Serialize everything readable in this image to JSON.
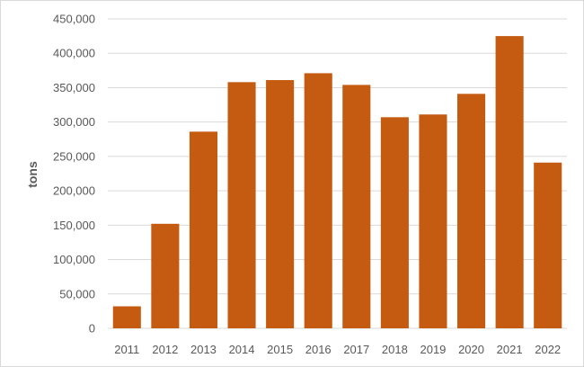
{
  "chart_data": {
    "type": "bar",
    "categories": [
      "2011",
      "2012",
      "2013",
      "2014",
      "2015",
      "2016",
      "2017",
      "2018",
      "2019",
      "2020",
      "2021",
      "2022"
    ],
    "series": [
      {
        "values": [
          32000,
          152000,
          286000,
          358000,
          361000,
          371000,
          354000,
          307000,
          311000,
          341000,
          425000,
          241000
        ],
        "color": "#c55a11"
      }
    ],
    "title": "",
    "xlabel": "",
    "ylabel": "tons",
    "ylim": [
      0,
      450000
    ],
    "yticks": [
      0,
      50000,
      100000,
      150000,
      200000,
      250000,
      300000,
      350000,
      400000,
      450000
    ],
    "ytick_labels": [
      "0",
      "50,000",
      "100,000",
      "150,000",
      "200,000",
      "250,000",
      "300,000",
      "350,000",
      "400,000",
      "450,000"
    ],
    "grid": true,
    "legend": "none",
    "colors": {
      "bar": "#c55a11",
      "grid": "#d9d9d9",
      "axis_text": "#595959"
    }
  }
}
